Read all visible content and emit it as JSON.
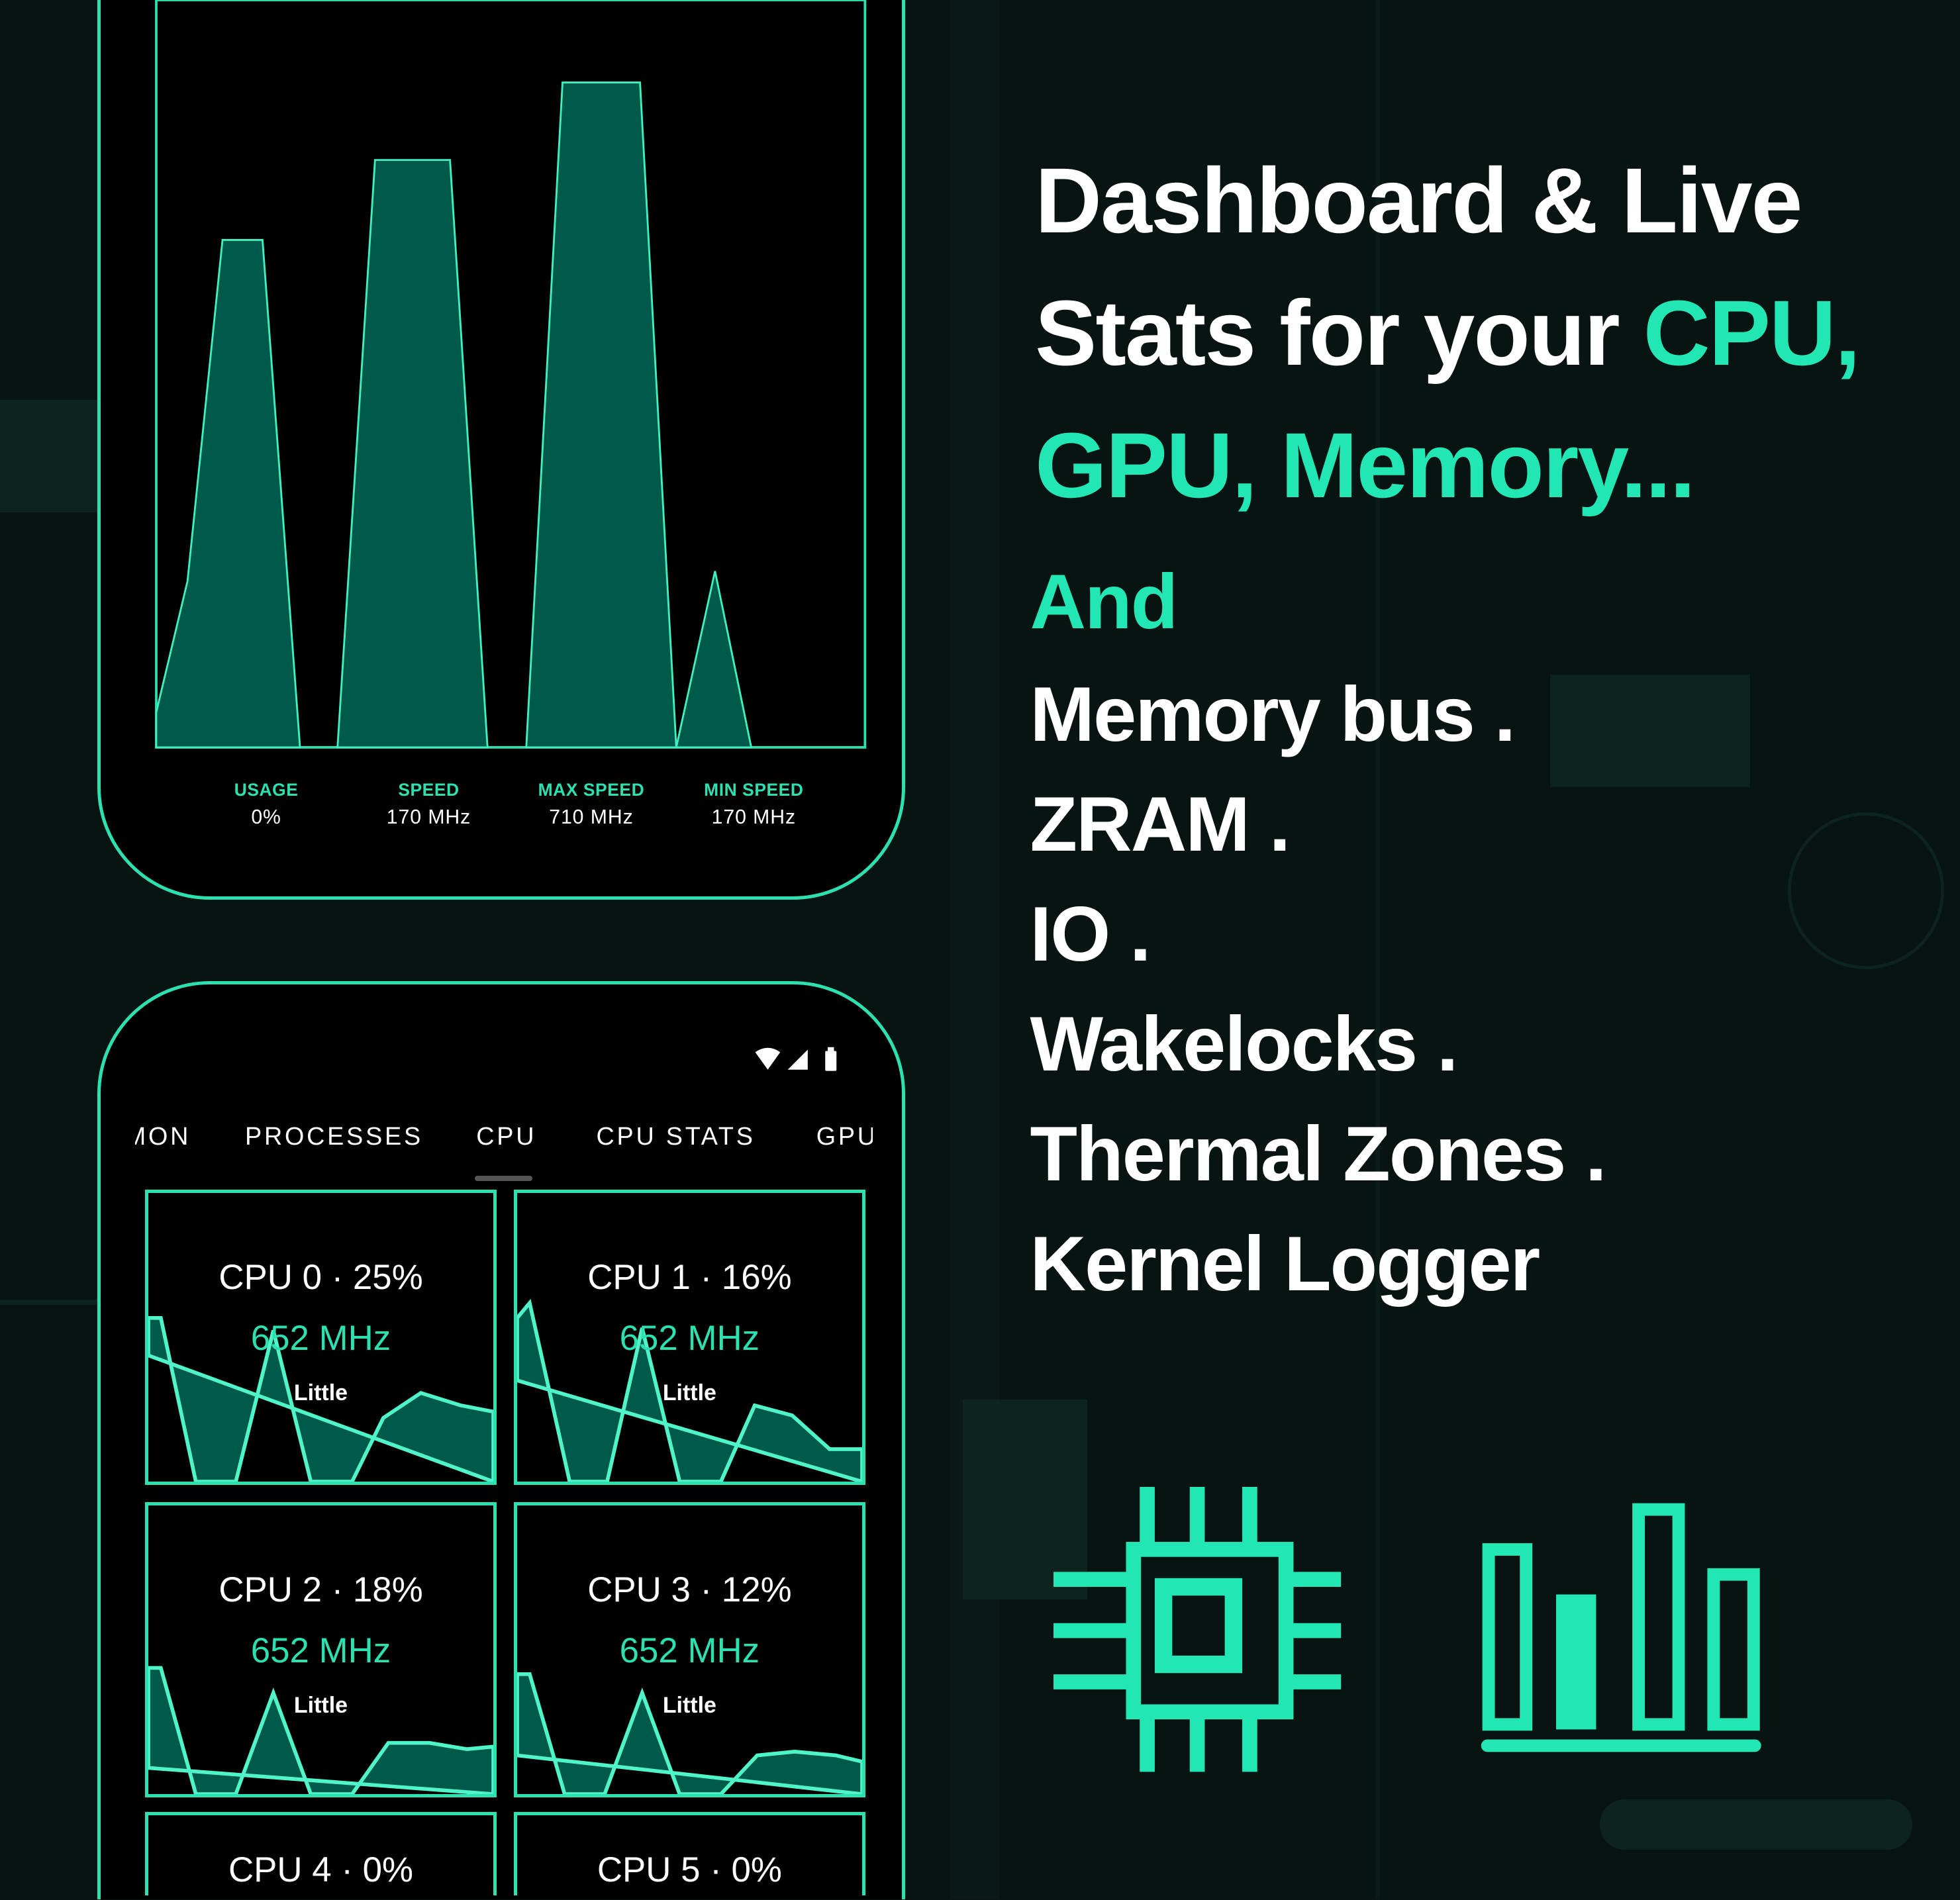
{
  "colors": {
    "accent": "#22e6b4",
    "background": "#081411",
    "fill": "#005a4a"
  },
  "top_phone": {
    "stats": [
      {
        "label": "USAGE",
        "value": "0%"
      },
      {
        "label": "SPEED",
        "value": "170 MHz"
      },
      {
        "label": "MAX SPEED",
        "value": "710 MHz"
      },
      {
        "label": "MIN SPEED",
        "value": "170 MHz"
      }
    ]
  },
  "bottom_phone": {
    "status_icons": [
      "wifi-icon",
      "signal-icon",
      "battery-icon"
    ],
    "tabs": [
      "MON",
      "PROCESSES",
      "CPU",
      "CPU STATS",
      "GPU"
    ],
    "active_tab": "CPU",
    "cores": [
      {
        "title": "CPU 0 · 25%",
        "freq": "652 MHz",
        "cluster": "Little"
      },
      {
        "title": "CPU 1 · 16%",
        "freq": "652 MHz",
        "cluster": "Little"
      },
      {
        "title": "CPU 2 · 18%",
        "freq": "652 MHz",
        "cluster": "Little"
      },
      {
        "title": "CPU 3 · 12%",
        "freq": "652 MHz",
        "cluster": "Little"
      },
      {
        "title": "CPU 4 · 0%",
        "freq": "",
        "cluster": ""
      },
      {
        "title": "CPU 5 · 0%",
        "freq": "",
        "cluster": ""
      }
    ]
  },
  "headline": {
    "line1": "Dashboard & Live",
    "line2a": "Stats for your ",
    "line2b": "CPU,",
    "line3": "GPU, Memory...",
    "line4": "And",
    "items": [
      "Memory bus .",
      "ZRAM .",
      "IO .",
      "Wakelocks .",
      "Thermal Zones .",
      "Kernel Logger"
    ]
  },
  "icons": [
    "cpu-chip-icon",
    "bar-chart-icon"
  ]
}
